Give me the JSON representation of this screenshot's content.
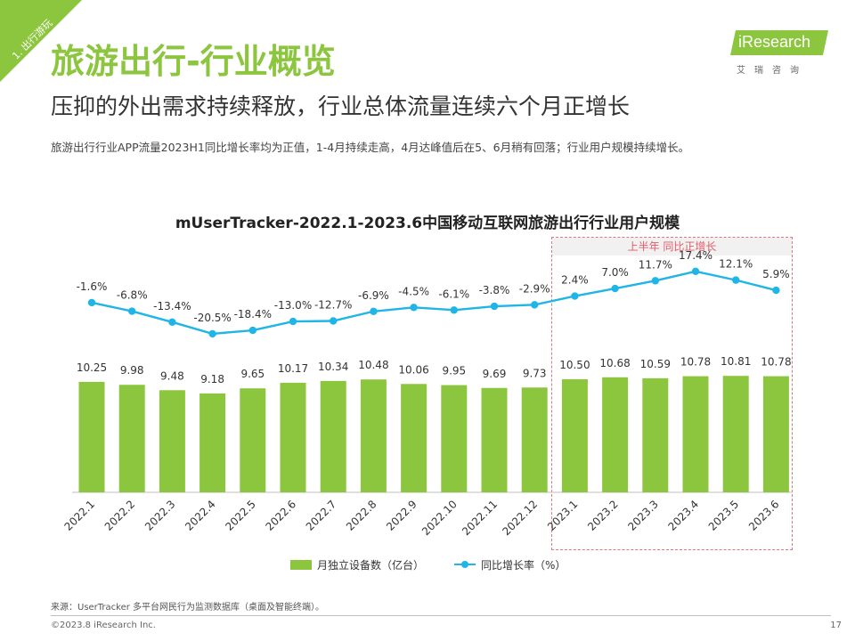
{
  "section_tag": "1. 出行游玩",
  "title": "旅游出行-行业概览",
  "subtitle": "压抑的外出需求持续释放，行业总体流量连续六个月正增长",
  "summary": "旅游出行行业APP流量2023H1同比增长率均为正值，1-4月持续走高，4月达峰值后在5、6月稍有回落；行业用户规模持续增长。",
  "logo": {
    "word": "iResearch",
    "sub": "艾瑞咨询"
  },
  "colors": {
    "accent": "#8cc63f",
    "line": "#1fb5e6",
    "highlight": "#e15c68"
  },
  "chart_data": {
    "type": "bar",
    "title": "mUserTracker-2022.1-2023.6中国移动互联网旅游出行行业用户规模",
    "categories": [
      "2022.1",
      "2022.2",
      "2022.3",
      "2022.4",
      "2022.5",
      "2022.6",
      "2022.7",
      "2022.8",
      "2022.9",
      "2022.10",
      "2022.11",
      "2022.12",
      "2023.1",
      "2023.2",
      "2023.3",
      "2023.4",
      "2023.5",
      "2023.6"
    ],
    "series": [
      {
        "name": "月独立设备数（亿台）",
        "type": "bar",
        "values": [
          10.25,
          9.98,
          9.48,
          9.18,
          9.65,
          10.17,
          10.34,
          10.48,
          10.06,
          9.95,
          9.69,
          9.73,
          10.5,
          10.68,
          10.59,
          10.78,
          10.81,
          10.78
        ],
        "labels": [
          "10.25",
          "9.98",
          "9.48",
          "9.18",
          "9.65",
          "10.17",
          "10.34",
          "10.48",
          "10.06",
          "9.95",
          "9.69",
          "9.73",
          "10.50",
          "10.68",
          "10.59",
          "10.78",
          "10.81",
          "10.78"
        ]
      },
      {
        "name": "同比增长率（%）",
        "type": "line",
        "values": [
          -1.6,
          -6.8,
          -13.4,
          -20.5,
          -18.4,
          -13.0,
          -12.7,
          -6.9,
          -4.5,
          -6.1,
          -3.8,
          -2.9,
          2.4,
          7.0,
          11.7,
          17.4,
          12.1,
          5.9
        ],
        "labels": [
          "-1.6%",
          "-6.8%",
          "-13.4%",
          "-20.5%",
          "-18.4%",
          "-13.0%",
          "-12.7%",
          "-6.9%",
          "-4.5%",
          "-6.1%",
          "-3.8%",
          "-2.9%",
          "2.4%",
          "7.0%",
          "11.7%",
          "17.4%",
          "12.1%",
          "5.9%"
        ]
      }
    ],
    "annotation": "上半年 同比正增长",
    "legend_position": "bottom",
    "grid": false
  },
  "source": "来源：UserTracker 多平台网民行为监测数据库（桌面及智能终端）。",
  "copyright": "©2023.8 iResearch Inc.",
  "page_number": "17"
}
